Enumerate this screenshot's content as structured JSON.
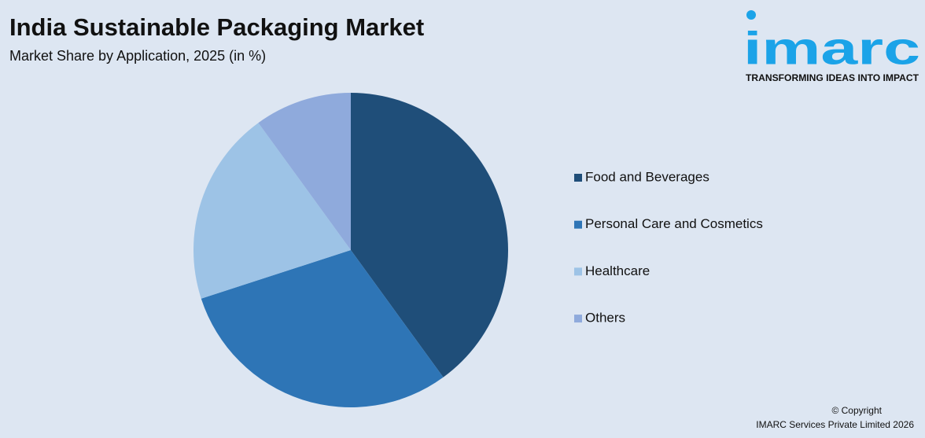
{
  "chart_data": {
    "type": "pie",
    "title": "India Sustainable Packaging Market",
    "subtitle": "Market Share by Application, 2025 (in %)",
    "categories": [
      "Food and Beverages",
      "Personal Care and Cosmetics",
      "Healthcare",
      "Others"
    ],
    "values": [
      40,
      30,
      20,
      10
    ],
    "colors": [
      "#1f4e79",
      "#2e75b6",
      "#9dc3e6",
      "#8faadc"
    ],
    "legend": "right"
  },
  "logo": {
    "name": "imarc",
    "tagline": "TRANSFORMING IDEAS INTO IMPACT"
  },
  "footer": {
    "copyright": "© Copyright",
    "company": "IMARC Services Private Limited 2026"
  }
}
